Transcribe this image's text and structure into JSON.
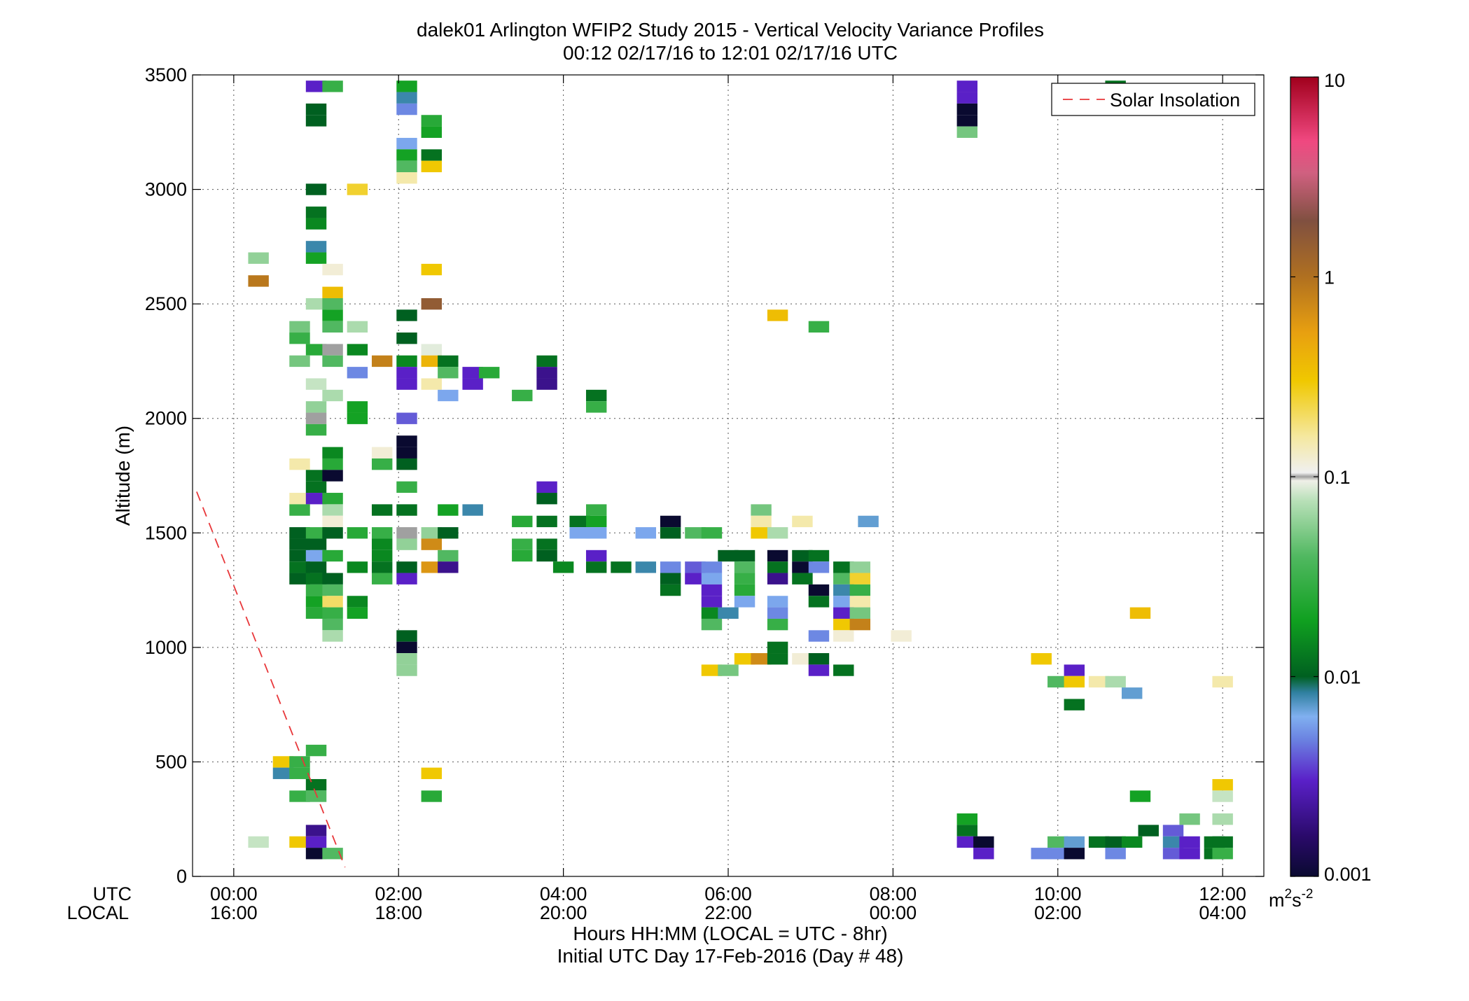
{
  "chart_data": {
    "type": "heatmap",
    "title": "dalek01 Arlington WFIP2 Study 2015 - Vertical Velocity Variance Profiles",
    "subtitle": "00:12 02/17/16 to 12:01 02/17/16  UTC",
    "ylabel": "Altitude (m)",
    "xlabel": "Hours HH:MM  (LOCAL = UTC - 8hr)",
    "xlabel2": "Initial UTC Day 17-Feb-2016 (Day # 48)",
    "x_row_names": [
      "UTC",
      "LOCAL"
    ],
    "xlim": [
      -0.5,
      12.5
    ],
    "ylim": [
      0,
      3500
    ],
    "grid": true,
    "x_ticks": [
      {
        "utc": "00:00",
        "local": "16:00",
        "hour": 0
      },
      {
        "utc": "02:00",
        "local": "18:00",
        "hour": 2
      },
      {
        "utc": "04:00",
        "local": "20:00",
        "hour": 4
      },
      {
        "utc": "06:00",
        "local": "22:00",
        "hour": 6
      },
      {
        "utc": "08:00",
        "local": "00:00",
        "hour": 8
      },
      {
        "utc": "10:00",
        "local": "02:00",
        "hour": 10
      },
      {
        "utc": "12:00",
        "local": "04:00",
        "hour": 12
      }
    ],
    "y_ticks": [
      "0",
      "500",
      "1000",
      "1500",
      "2000",
      "2500",
      "3000",
      "3500"
    ],
    "colorbar": {
      "scale": "log",
      "range": [
        0.001,
        10
      ],
      "tick_labels": [
        "0.001",
        "0.01",
        "0.1",
        "1",
        "10"
      ],
      "unit_base": "m",
      "unit_exp1": "2",
      "unit_mid": "s",
      "unit_exp2": "-2"
    },
    "legend": {
      "entries": [
        "Solar Insolation"
      ],
      "placement": "top-right",
      "color": "#e8373a"
    },
    "solar_insolation": [
      [
        -0.45,
        1680
      ],
      [
        1.35,
        40
      ]
    ],
    "cell_width_hours": 0.25,
    "cell_height_m": 50,
    "cells": [
      [
        1.0,
        3450,
        0.003
      ],
      [
        1.2,
        3450,
        0.03
      ],
      [
        2.1,
        3450,
        0.02
      ],
      [
        2.1,
        3400,
        0.008
      ],
      [
        2.1,
        3350,
        0.005
      ],
      [
        1.0,
        3350,
        0.01
      ],
      [
        1.0,
        3300,
        0.01
      ],
      [
        2.4,
        3300,
        0.025
      ],
      [
        2.4,
        3250,
        0.02
      ],
      [
        2.1,
        3200,
        0.006
      ],
      [
        2.1,
        3150,
        0.02
      ],
      [
        2.4,
        3150,
        0.012
      ],
      [
        2.1,
        3100,
        0.04
      ],
      [
        2.4,
        3100,
        0.3
      ],
      [
        2.1,
        3050,
        0.15
      ],
      [
        1.0,
        3000,
        0.01
      ],
      [
        1.5,
        3000,
        0.25
      ],
      [
        1.0,
        2900,
        0.012
      ],
      [
        1.0,
        2850,
        0.015
      ],
      [
        1.0,
        2750,
        0.008
      ],
      [
        1.0,
        2700,
        0.02
      ],
      [
        0.3,
        2700,
        0.06
      ],
      [
        1.2,
        2650,
        0.12
      ],
      [
        2.4,
        2650,
        0.3
      ],
      [
        0.3,
        2600,
        0.9
      ],
      [
        1.2,
        2550,
        0.35
      ],
      [
        1.0,
        2500,
        0.07
      ],
      [
        1.2,
        2500,
        0.04
      ],
      [
        2.4,
        2500,
        1.5
      ],
      [
        1.2,
        2450,
        0.02
      ],
      [
        2.1,
        2450,
        0.01
      ],
      [
        6.6,
        2450,
        0.35
      ],
      [
        7.1,
        2400,
        0.03
      ],
      [
        0.8,
        2400,
        0.05
      ],
      [
        1.2,
        2400,
        0.04
      ],
      [
        1.5,
        2400,
        0.07
      ],
      [
        0.8,
        2350,
        0.03
      ],
      [
        2.1,
        2350,
        0.01
      ],
      [
        1.0,
        2300,
        0.025
      ],
      [
        1.2,
        2300,
        0.1
      ],
      [
        1.5,
        2300,
        0.015
      ],
      [
        2.4,
        2300,
        0.09
      ],
      [
        0.8,
        2250,
        0.05
      ],
      [
        1.2,
        2250,
        0.04
      ],
      [
        1.8,
        2250,
        0.8
      ],
      [
        2.1,
        2250,
        0.015
      ],
      [
        2.4,
        2250,
        0.4
      ],
      [
        2.6,
        2250,
        0.012
      ],
      [
        3.8,
        2250,
        0.012
      ],
      [
        1.5,
        2200,
        0.005
      ],
      [
        2.1,
        2200,
        0.003
      ],
      [
        2.6,
        2200,
        0.04
      ],
      [
        2.9,
        2200,
        0.003
      ],
      [
        3.1,
        2200,
        0.025
      ],
      [
        3.8,
        2200,
        0.002
      ],
      [
        1.0,
        2150,
        0.08
      ],
      [
        2.1,
        2150,
        0.003
      ],
      [
        2.4,
        2150,
        0.15
      ],
      [
        2.9,
        2150,
        0.003
      ],
      [
        3.8,
        2150,
        0.002
      ],
      [
        1.2,
        2100,
        0.07
      ],
      [
        2.6,
        2100,
        0.006
      ],
      [
        3.5,
        2100,
        0.03
      ],
      [
        4.4,
        2100,
        0.012
      ],
      [
        1.0,
        2050,
        0.06
      ],
      [
        1.5,
        2050,
        0.02
      ],
      [
        4.4,
        2050,
        0.03
      ],
      [
        1.0,
        2000,
        0.1
      ],
      [
        1.5,
        2000,
        0.02
      ],
      [
        2.1,
        2000,
        0.004
      ],
      [
        1.0,
        1950,
        0.03
      ],
      [
        2.1,
        1900,
        0.001
      ],
      [
        1.2,
        1850,
        0.015
      ],
      [
        1.8,
        1850,
        0.12
      ],
      [
        2.1,
        1850,
        0.001
      ],
      [
        0.8,
        1800,
        0.15
      ],
      [
        1.2,
        1800,
        0.025
      ],
      [
        1.8,
        1800,
        0.03
      ],
      [
        2.1,
        1800,
        0.01
      ],
      [
        1.0,
        1750,
        0.012
      ],
      [
        1.2,
        1750,
        0.001
      ],
      [
        1.0,
        1700,
        0.012
      ],
      [
        2.1,
        1700,
        0.03
      ],
      [
        3.8,
        1700,
        0.003
      ],
      [
        0.8,
        1650,
        0.15
      ],
      [
        1.0,
        1650,
        0.003
      ],
      [
        1.2,
        1650,
        0.025
      ],
      [
        3.8,
        1650,
        0.01
      ],
      [
        0.8,
        1600,
        0.03
      ],
      [
        1.2,
        1600,
        0.07
      ],
      [
        1.8,
        1600,
        0.012
      ],
      [
        2.1,
        1600,
        0.012
      ],
      [
        2.6,
        1600,
        0.02
      ],
      [
        2.9,
        1600,
        0.008
      ],
      [
        4.4,
        1600,
        0.03
      ],
      [
        6.4,
        1600,
        0.05
      ],
      [
        7.7,
        1550,
        0.007
      ],
      [
        1.2,
        1550,
        0.12
      ],
      [
        3.5,
        1550,
        0.025
      ],
      [
        3.8,
        1550,
        0.012
      ],
      [
        4.2,
        1550,
        0.012
      ],
      [
        4.4,
        1550,
        0.02
      ],
      [
        5.3,
        1550,
        0.001
      ],
      [
        6.4,
        1550,
        0.15
      ],
      [
        6.9,
        1550,
        0.15
      ],
      [
        0.8,
        1500,
        0.01
      ],
      [
        1.0,
        1500,
        0.03
      ],
      [
        1.2,
        1500,
        0.01
      ],
      [
        1.5,
        1500,
        0.025
      ],
      [
        1.8,
        1500,
        0.03
      ],
      [
        2.1,
        1500,
        0.1
      ],
      [
        2.4,
        1500,
        0.06
      ],
      [
        2.6,
        1500,
        0.01
      ],
      [
        4.2,
        1500,
        0.006
      ],
      [
        4.4,
        1500,
        0.006
      ],
      [
        5.0,
        1500,
        0.006
      ],
      [
        5.3,
        1500,
        0.01
      ],
      [
        5.6,
        1500,
        0.04
      ],
      [
        5.8,
        1500,
        0.03
      ],
      [
        6.4,
        1500,
        0.3
      ],
      [
        6.6,
        1500,
        0.07
      ],
      [
        0.8,
        1450,
        0.01
      ],
      [
        1.0,
        1450,
        0.01
      ],
      [
        1.8,
        1450,
        0.015
      ],
      [
        2.1,
        1450,
        0.06
      ],
      [
        2.4,
        1450,
        0.7
      ],
      [
        3.5,
        1450,
        0.03
      ],
      [
        3.8,
        1450,
        0.012
      ],
      [
        0.8,
        1400,
        0.01
      ],
      [
        1.0,
        1400,
        0.006
      ],
      [
        1.2,
        1400,
        0.025
      ],
      [
        1.8,
        1400,
        0.015
      ],
      [
        2.6,
        1400,
        0.04
      ],
      [
        3.5,
        1400,
        0.025
      ],
      [
        3.8,
        1400,
        0.01
      ],
      [
        4.4,
        1400,
        0.003
      ],
      [
        6.0,
        1400,
        0.01
      ],
      [
        6.2,
        1400,
        0.01
      ],
      [
        6.6,
        1400,
        0.001
      ],
      [
        6.9,
        1400,
        0.01
      ],
      [
        7.1,
        1400,
        0.012
      ],
      [
        0.8,
        1350,
        0.012
      ],
      [
        1.0,
        1350,
        0.01
      ],
      [
        1.5,
        1350,
        0.015
      ],
      [
        1.8,
        1350,
        0.012
      ],
      [
        2.1,
        1350,
        0.01
      ],
      [
        2.4,
        1350,
        0.6
      ],
      [
        2.6,
        1350,
        0.002
      ],
      [
        4.0,
        1350,
        0.015
      ],
      [
        4.4,
        1350,
        0.012
      ],
      [
        4.7,
        1350,
        0.012
      ],
      [
        5.0,
        1350,
        0.008
      ],
      [
        5.3,
        1350,
        0.005
      ],
      [
        5.6,
        1350,
        0.004
      ],
      [
        5.8,
        1350,
        0.005
      ],
      [
        6.2,
        1350,
        0.04
      ],
      [
        6.6,
        1350,
        0.012
      ],
      [
        6.9,
        1350,
        0.001
      ],
      [
        7.1,
        1350,
        0.005
      ],
      [
        7.4,
        1350,
        0.012
      ],
      [
        7.6,
        1350,
        0.06
      ],
      [
        0.8,
        1300,
        0.01
      ],
      [
        1.0,
        1300,
        0.012
      ],
      [
        1.2,
        1300,
        0.01
      ],
      [
        1.8,
        1300,
        0.03
      ],
      [
        2.1,
        1300,
        0.003
      ],
      [
        5.3,
        1300,
        0.01
      ],
      [
        5.6,
        1300,
        0.003
      ],
      [
        5.8,
        1300,
        0.006
      ],
      [
        6.2,
        1300,
        0.03
      ],
      [
        6.6,
        1300,
        0.002
      ],
      [
        6.9,
        1300,
        0.012
      ],
      [
        7.4,
        1300,
        0.04
      ],
      [
        7.6,
        1300,
        0.25
      ],
      [
        1.0,
        1250,
        0.03
      ],
      [
        1.2,
        1250,
        0.04
      ],
      [
        5.3,
        1250,
        0.012
      ],
      [
        5.8,
        1250,
        0.003
      ],
      [
        6.2,
        1250,
        0.025
      ],
      [
        7.1,
        1250,
        0.001
      ],
      [
        7.4,
        1250,
        0.008
      ],
      [
        7.6,
        1250,
        0.03
      ],
      [
        1.0,
        1200,
        0.02
      ],
      [
        1.2,
        1200,
        0.2
      ],
      [
        1.5,
        1200,
        0.015
      ],
      [
        5.8,
        1200,
        0.003
      ],
      [
        6.2,
        1200,
        0.006
      ],
      [
        6.6,
        1200,
        0.006
      ],
      [
        7.1,
        1200,
        0.012
      ],
      [
        7.4,
        1200,
        0.006
      ],
      [
        7.6,
        1200,
        0.15
      ],
      [
        1.0,
        1150,
        0.025
      ],
      [
        1.2,
        1150,
        0.03
      ],
      [
        1.5,
        1150,
        0.02
      ],
      [
        5.8,
        1150,
        0.015
      ],
      [
        6.0,
        1150,
        0.008
      ],
      [
        6.6,
        1150,
        0.005
      ],
      [
        7.4,
        1150,
        0.003
      ],
      [
        7.6,
        1150,
        0.05
      ],
      [
        11.0,
        1150,
        0.35
      ],
      [
        1.2,
        1100,
        0.04
      ],
      [
        5.8,
        1100,
        0.04
      ],
      [
        6.6,
        1100,
        0.03
      ],
      [
        7.4,
        1100,
        0.3
      ],
      [
        7.6,
        1100,
        0.8
      ],
      [
        1.2,
        1050,
        0.07
      ],
      [
        2.1,
        1050,
        0.01
      ],
      [
        7.1,
        1050,
        0.005
      ],
      [
        7.4,
        1050,
        0.12
      ],
      [
        8.1,
        1050,
        0.12
      ],
      [
        2.1,
        1000,
        0.001
      ],
      [
        6.6,
        1000,
        0.012
      ],
      [
        2.1,
        950,
        0.06
      ],
      [
        6.2,
        950,
        0.3
      ],
      [
        6.4,
        950,
        0.7
      ],
      [
        6.6,
        950,
        0.012
      ],
      [
        6.9,
        950,
        0.12
      ],
      [
        7.1,
        950,
        0.01
      ],
      [
        9.8,
        950,
        0.3
      ],
      [
        2.1,
        900,
        0.06
      ],
      [
        5.8,
        900,
        0.3
      ],
      [
        6.0,
        900,
        0.05
      ],
      [
        7.1,
        900,
        0.003
      ],
      [
        7.4,
        900,
        0.012
      ],
      [
        10.2,
        900,
        0.003
      ],
      [
        10.0,
        850,
        0.04
      ],
      [
        10.2,
        850,
        0.3
      ],
      [
        10.5,
        850,
        0.15
      ],
      [
        10.7,
        850,
        0.07
      ],
      [
        12.0,
        850,
        0.15
      ],
      [
        10.9,
        800,
        0.007
      ],
      [
        10.2,
        750,
        0.012
      ],
      [
        1.0,
        550,
        0.03
      ],
      [
        0.6,
        500,
        0.3
      ],
      [
        0.8,
        500,
        0.03
      ],
      [
        0.6,
        450,
        0.008
      ],
      [
        0.8,
        450,
        0.03
      ],
      [
        2.4,
        450,
        0.3
      ],
      [
        1.0,
        400,
        0.012
      ],
      [
        0.8,
        350,
        0.03
      ],
      [
        1.0,
        350,
        0.04
      ],
      [
        2.4,
        350,
        0.025
      ],
      [
        11.0,
        350,
        0.02
      ],
      [
        12.0,
        400,
        0.3
      ],
      [
        12.0,
        350,
        0.08
      ],
      [
        8.9,
        250,
        0.02
      ],
      [
        11.6,
        250,
        0.05
      ],
      [
        12.0,
        250,
        0.07
      ],
      [
        1.0,
        200,
        0.002
      ],
      [
        8.9,
        200,
        0.012
      ],
      [
        11.1,
        200,
        0.01
      ],
      [
        11.4,
        200,
        0.004
      ],
      [
        0.3,
        150,
        0.08
      ],
      [
        0.8,
        150,
        0.3
      ],
      [
        1.0,
        150,
        0.003
      ],
      [
        8.9,
        150,
        0.003
      ],
      [
        9.1,
        150,
        0.001
      ],
      [
        10.0,
        150,
        0.04
      ],
      [
        10.2,
        150,
        0.007
      ],
      [
        10.5,
        150,
        0.012
      ],
      [
        10.7,
        150,
        0.01
      ],
      [
        10.9,
        150,
        0.015
      ],
      [
        11.4,
        150,
        0.008
      ],
      [
        11.6,
        150,
        0.003
      ],
      [
        11.9,
        150,
        0.012
      ],
      [
        12.0,
        150,
        0.012
      ],
      [
        1.0,
        100,
        0.001
      ],
      [
        1.2,
        100,
        0.04
      ],
      [
        9.1,
        100,
        0.003
      ],
      [
        9.8,
        100,
        0.005
      ],
      [
        10.0,
        100,
        0.005
      ],
      [
        10.2,
        100,
        0.001
      ],
      [
        10.7,
        100,
        0.005
      ],
      [
        11.4,
        100,
        0.004
      ],
      [
        11.6,
        100,
        0.003
      ],
      [
        11.9,
        100,
        0.012
      ],
      [
        12.0,
        100,
        0.03
      ],
      [
        8.9,
        3450,
        0.003
      ],
      [
        8.9,
        3400,
        0.003
      ],
      [
        8.9,
        3350,
        0.001
      ],
      [
        8.9,
        3300,
        0.001
      ],
      [
        8.9,
        3250,
        0.05
      ],
      [
        10.7,
        3450,
        0.012
      ]
    ]
  }
}
